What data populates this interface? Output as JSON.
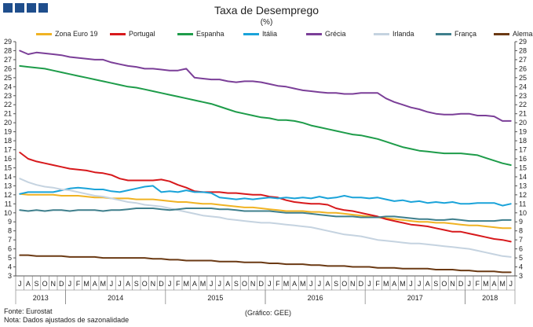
{
  "header": {
    "title": "Taxa de Desemprego",
    "subtitle": "(%)"
  },
  "footer": {
    "source": "Fonte: Eurostat",
    "note": "Nota: Dados ajustados de sazonalidade",
    "credit": "(Gráfico: GEE)"
  },
  "chart_data": {
    "type": "line",
    "title": "Taxa de Desemprego",
    "subtitle": "(%)",
    "ylim": [
      3,
      29
    ],
    "yticks": [
      3,
      4,
      5,
      6,
      7,
      8,
      9,
      10,
      11,
      12,
      13,
      14,
      15,
      16,
      17,
      18,
      19,
      20,
      21,
      22,
      23,
      24,
      25,
      26,
      27,
      28,
      29
    ],
    "grid": false,
    "legend_position": "top",
    "month_labels": [
      "J",
      "A",
      "S",
      "O",
      "N",
      "D",
      "J",
      "F",
      "M",
      "A",
      "M",
      "J",
      "J",
      "A",
      "S",
      "O",
      "N",
      "D",
      "J",
      "F",
      "M",
      "A",
      "M",
      "J",
      "J",
      "A",
      "S",
      "O",
      "N",
      "D",
      "J",
      "F",
      "M",
      "A",
      "M",
      "J",
      "J",
      "A",
      "S",
      "O",
      "N",
      "D",
      "J",
      "F",
      "M",
      "A",
      "M",
      "J",
      "J",
      "A",
      "S",
      "O",
      "N",
      "D",
      "J",
      "F",
      "M",
      "A",
      "M",
      "J"
    ],
    "year_labels": [
      {
        "label": "2013",
        "start": 0,
        "end": 5
      },
      {
        "label": "2014",
        "start": 6,
        "end": 17
      },
      {
        "label": "2015",
        "start": 18,
        "end": 29
      },
      {
        "label": "2016",
        "start": 30,
        "end": 41
      },
      {
        "label": "2017",
        "start": 42,
        "end": 53
      },
      {
        "label": "2018",
        "start": 54,
        "end": 59
      }
    ],
    "series": [
      {
        "name": "Zona Euro 19",
        "color": "#f0b323",
        "values": [
          12.1,
          12.0,
          12.0,
          12.0,
          12.0,
          11.9,
          11.9,
          11.9,
          11.8,
          11.7,
          11.7,
          11.6,
          11.6,
          11.6,
          11.5,
          11.5,
          11.5,
          11.4,
          11.3,
          11.2,
          11.2,
          11.1,
          11.0,
          11.0,
          10.9,
          10.8,
          10.7,
          10.6,
          10.6,
          10.5,
          10.4,
          10.3,
          10.2,
          10.2,
          10.2,
          10.1,
          10.1,
          10.0,
          10.0,
          9.9,
          9.8,
          9.7,
          9.6,
          9.5,
          9.4,
          9.3,
          9.2,
          9.1,
          9.0,
          9.0,
          8.9,
          8.9,
          8.8,
          8.7,
          8.6,
          8.6,
          8.5,
          8.4,
          8.3,
          8.3
        ]
      },
      {
        "name": "Portugal",
        "color": "#d7191c",
        "values": [
          16.7,
          16.0,
          15.7,
          15.5,
          15.3,
          15.1,
          14.9,
          14.8,
          14.7,
          14.5,
          14.4,
          14.2,
          13.8,
          13.6,
          13.6,
          13.6,
          13.6,
          13.7,
          13.5,
          13.1,
          12.8,
          12.4,
          12.3,
          12.3,
          12.3,
          12.2,
          12.2,
          12.1,
          12.0,
          12.0,
          11.8,
          11.7,
          11.4,
          11.2,
          11.1,
          11.0,
          11.0,
          10.9,
          10.5,
          10.3,
          10.2,
          10.0,
          9.8,
          9.6,
          9.3,
          9.1,
          8.9,
          8.7,
          8.6,
          8.5,
          8.3,
          8.1,
          7.9,
          7.9,
          7.7,
          7.5,
          7.3,
          7.1,
          7.0,
          6.8
        ]
      },
      {
        "name": "Espanha",
        "color": "#1e9c4a",
        "values": [
          26.3,
          26.2,
          26.1,
          26.0,
          25.8,
          25.6,
          25.4,
          25.2,
          25.0,
          24.8,
          24.6,
          24.4,
          24.2,
          24.0,
          23.9,
          23.7,
          23.5,
          23.3,
          23.1,
          22.9,
          22.7,
          22.5,
          22.3,
          22.1,
          21.8,
          21.5,
          21.2,
          21.0,
          20.8,
          20.6,
          20.5,
          20.3,
          20.3,
          20.2,
          20.0,
          19.7,
          19.5,
          19.3,
          19.1,
          18.9,
          18.7,
          18.6,
          18.4,
          18.2,
          17.9,
          17.6,
          17.3,
          17.1,
          16.9,
          16.8,
          16.7,
          16.6,
          16.6,
          16.6,
          16.5,
          16.4,
          16.1,
          15.8,
          15.5,
          15.3
        ]
      },
      {
        "name": "Itália",
        "color": "#1aa3d9",
        "values": [
          12.1,
          12.3,
          12.3,
          12.3,
          12.3,
          12.5,
          12.7,
          12.8,
          12.7,
          12.6,
          12.6,
          12.4,
          12.3,
          12.5,
          12.7,
          12.9,
          13.0,
          12.3,
          12.4,
          12.3,
          12.5,
          12.3,
          12.3,
          12.2,
          11.7,
          11.6,
          11.5,
          11.6,
          11.5,
          11.6,
          11.7,
          11.6,
          11.7,
          11.6,
          11.7,
          11.6,
          11.8,
          11.6,
          11.7,
          11.9,
          11.7,
          11.7,
          11.6,
          11.7,
          11.5,
          11.3,
          11.4,
          11.2,
          11.3,
          11.1,
          11.2,
          11.1,
          11.2,
          11.0,
          11.0,
          11.1,
          11.1,
          11.1,
          10.8,
          11.0
        ]
      },
      {
        "name": "Grécia",
        "color": "#7b3f98",
        "values": [
          28.0,
          27.6,
          27.8,
          27.7,
          27.6,
          27.5,
          27.3,
          27.2,
          27.1,
          27.0,
          27.0,
          26.7,
          26.5,
          26.3,
          26.2,
          26.0,
          26.0,
          25.9,
          25.8,
          25.8,
          26.0,
          25.0,
          24.9,
          24.8,
          24.8,
          24.6,
          24.5,
          24.6,
          24.6,
          24.5,
          24.3,
          24.1,
          24.0,
          23.8,
          23.6,
          23.5,
          23.4,
          23.3,
          23.3,
          23.2,
          23.2,
          23.3,
          23.3,
          23.3,
          22.7,
          22.3,
          22.0,
          21.7,
          21.5,
          21.2,
          21.0,
          20.9,
          20.9,
          21.0,
          21.0,
          20.8,
          20.8,
          20.7,
          20.2,
          20.2
        ]
      },
      {
        "name": "Irlanda",
        "color": "#c5d3e0",
        "values": [
          13.8,
          13.4,
          13.1,
          12.9,
          12.8,
          12.6,
          12.5,
          12.3,
          12.1,
          11.9,
          11.8,
          11.6,
          11.4,
          11.2,
          11.1,
          10.9,
          10.8,
          10.7,
          10.5,
          10.3,
          10.1,
          9.9,
          9.7,
          9.6,
          9.5,
          9.3,
          9.2,
          9.1,
          9.0,
          8.9,
          8.9,
          8.8,
          8.7,
          8.6,
          8.5,
          8.4,
          8.2,
          8.0,
          7.8,
          7.6,
          7.5,
          7.4,
          7.2,
          7.0,
          6.9,
          6.8,
          6.7,
          6.6,
          6.6,
          6.5,
          6.4,
          6.3,
          6.2,
          6.1,
          6.0,
          5.8,
          5.6,
          5.4,
          5.2,
          5.1
        ]
      },
      {
        "name": "França",
        "color": "#3f7f8c",
        "values": [
          10.3,
          10.2,
          10.3,
          10.2,
          10.3,
          10.3,
          10.2,
          10.3,
          10.3,
          10.3,
          10.2,
          10.3,
          10.3,
          10.4,
          10.5,
          10.5,
          10.5,
          10.4,
          10.3,
          10.4,
          10.5,
          10.5,
          10.5,
          10.5,
          10.4,
          10.4,
          10.3,
          10.2,
          10.2,
          10.2,
          10.2,
          10.1,
          10.0,
          10.0,
          10.0,
          9.9,
          9.8,
          9.7,
          9.6,
          9.6,
          9.6,
          9.5,
          9.5,
          9.5,
          9.6,
          9.6,
          9.5,
          9.4,
          9.3,
          9.3,
          9.2,
          9.2,
          9.3,
          9.2,
          9.1,
          9.1,
          9.1,
          9.1,
          9.2,
          9.2
        ]
      },
      {
        "name": "Alemanha",
        "color": "#6b3a14",
        "values": [
          5.3,
          5.3,
          5.2,
          5.2,
          5.2,
          5.2,
          5.1,
          5.1,
          5.1,
          5.1,
          5.0,
          5.0,
          5.0,
          5.0,
          5.0,
          5.0,
          4.9,
          4.9,
          4.8,
          4.8,
          4.7,
          4.7,
          4.7,
          4.7,
          4.6,
          4.6,
          4.6,
          4.5,
          4.5,
          4.5,
          4.4,
          4.4,
          4.3,
          4.3,
          4.3,
          4.2,
          4.2,
          4.1,
          4.1,
          4.1,
          4.0,
          4.0,
          4.0,
          3.9,
          3.9,
          3.9,
          3.8,
          3.8,
          3.8,
          3.8,
          3.7,
          3.7,
          3.7,
          3.6,
          3.6,
          3.5,
          3.5,
          3.5,
          3.4,
          3.4
        ]
      }
    ]
  }
}
